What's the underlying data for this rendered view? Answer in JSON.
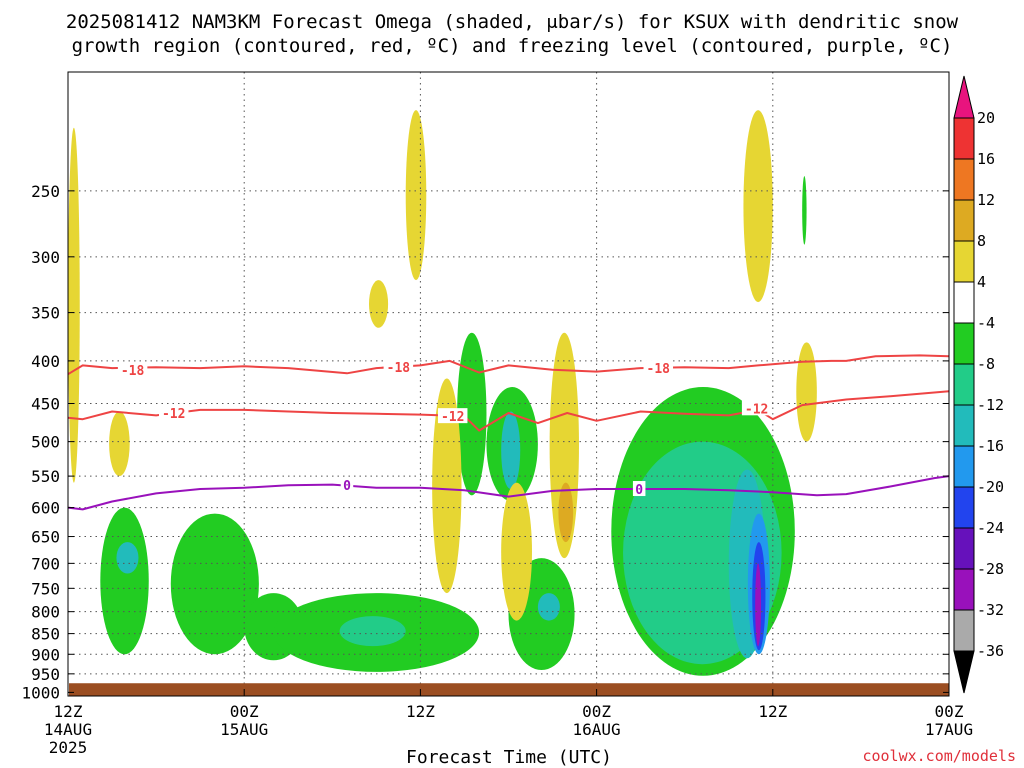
{
  "chart_data": {
    "type": "heatmap",
    "title_line1": "2025081412 NAM3KM Forecast Omega (shaded, μbar/s) for KSUX with dendritic snow",
    "title_line2": "growth region (contoured, red, ºC) and freezing level (contoured, purple, ºC)",
    "xlabel": "Forecast Time (UTC)",
    "credit": "coolwx.com/models",
    "x_ticks": [
      {
        "hour": 0,
        "line1": "12Z",
        "line2": "14AUG",
        "line3": "2025"
      },
      {
        "hour": 12,
        "line1": "00Z",
        "line2": "15AUG",
        "line3": ""
      },
      {
        "hour": 24,
        "line1": "12Z",
        "line2": "",
        "line3": ""
      },
      {
        "hour": 36,
        "line1": "00Z",
        "line2": "16AUG",
        "line3": ""
      },
      {
        "hour": 48,
        "line1": "12Z",
        "line2": "",
        "line3": ""
      },
      {
        "hour": 60,
        "line1": "00Z",
        "line2": "17AUG",
        "line3": ""
      }
    ],
    "x_range_hours": [
      0,
      60
    ],
    "y_ticks": [
      "250",
      "300",
      "350",
      "400",
      "450",
      "500",
      "550",
      "600",
      "650",
      "700",
      "750",
      "800",
      "850",
      "900",
      "950",
      "1000"
    ],
    "y_values": [
      250,
      300,
      350,
      400,
      450,
      500,
      550,
      600,
      650,
      700,
      750,
      800,
      850,
      900,
      950,
      1000
    ],
    "y_range_mb": [
      180,
      1010
    ],
    "y_scale": "log",
    "grid": true,
    "colorbar": {
      "labels": [
        "20",
        "16",
        "12",
        "8",
        "4",
        "-4",
        "-8",
        "-12",
        "-16",
        "-20",
        "-24",
        "-28",
        "-32",
        "-36"
      ],
      "colors": [
        "#e8147e",
        "#ee3333",
        "#ee7722",
        "#ddaa22",
        "#e6d633",
        "#ffffff",
        "#22cc22",
        "#22cc88",
        "#22bbbb",
        "#2299ee",
        "#2244ee",
        "#6611bb",
        "#9911bb",
        "#aaaaaa",
        "#000000"
      ]
    },
    "contours": {
      "dgz_upper": {
        "label": "-18",
        "color": "#ee4444",
        "points": [
          [
            0,
            415
          ],
          [
            1,
            405
          ],
          [
            3,
            408
          ],
          [
            6,
            407
          ],
          [
            9,
            408
          ],
          [
            12,
            406
          ],
          [
            15,
            408
          ],
          [
            19,
            414
          ],
          [
            21,
            408
          ],
          [
            24,
            405
          ],
          [
            26,
            400
          ],
          [
            28,
            413
          ],
          [
            30,
            405
          ],
          [
            33,
            410
          ],
          [
            36,
            412
          ],
          [
            39,
            408
          ],
          [
            42,
            407
          ],
          [
            45,
            408
          ],
          [
            47,
            405
          ],
          [
            50,
            401
          ],
          [
            52,
            400
          ],
          [
            53,
            400
          ],
          [
            55,
            395
          ],
          [
            58,
            394
          ],
          [
            60,
            395
          ]
        ]
      },
      "dgz_lower": {
        "label": "-12",
        "color": "#ee4444",
        "points": [
          [
            0,
            468
          ],
          [
            1,
            470
          ],
          [
            3,
            460
          ],
          [
            6,
            465
          ],
          [
            9,
            458
          ],
          [
            12,
            458
          ],
          [
            15,
            460
          ],
          [
            18,
            462
          ],
          [
            21,
            463
          ],
          [
            24,
            464
          ],
          [
            27,
            466
          ],
          [
            28,
            485
          ],
          [
            30,
            462
          ],
          [
            32,
            475
          ],
          [
            34,
            462
          ],
          [
            36,
            472
          ],
          [
            39,
            460
          ],
          [
            42,
            463
          ],
          [
            45,
            465
          ],
          [
            47,
            458
          ],
          [
            48,
            470
          ],
          [
            50,
            452
          ],
          [
            53,
            445
          ],
          [
            56,
            441
          ],
          [
            60,
            435
          ]
        ]
      },
      "freezing": {
        "label": "0",
        "color": "#9911bb",
        "points": [
          [
            0,
            600
          ],
          [
            1,
            603
          ],
          [
            3,
            590
          ],
          [
            6,
            577
          ],
          [
            9,
            570
          ],
          [
            12,
            568
          ],
          [
            15,
            564
          ],
          [
            18,
            563
          ],
          [
            21,
            568
          ],
          [
            24,
            568
          ],
          [
            27,
            572
          ],
          [
            30,
            582
          ],
          [
            33,
            573
          ],
          [
            36,
            570
          ],
          [
            39,
            570
          ],
          [
            42,
            570
          ],
          [
            45,
            572
          ],
          [
            48,
            575
          ],
          [
            51,
            580
          ],
          [
            53,
            578
          ],
          [
            56,
            566
          ],
          [
            59,
            553
          ],
          [
            60,
            550
          ]
        ]
      }
    },
    "contour_labels": [
      {
        "text": "-18",
        "hour": 4.4,
        "mb": 410,
        "color": "#ee4444"
      },
      {
        "text": "-18",
        "hour": 22.5,
        "mb": 407,
        "color": "#ee4444"
      },
      {
        "text": "-18",
        "hour": 40.2,
        "mb": 408,
        "color": "#ee4444"
      },
      {
        "text": "-12",
        "hour": 7.2,
        "mb": 462,
        "color": "#ee4444"
      },
      {
        "text": "-12",
        "hour": 26.2,
        "mb": 466,
        "color": "#ee4444"
      },
      {
        "text": "-12",
        "hour": 46.9,
        "mb": 456,
        "color": "#ee4444"
      },
      {
        "text": "0",
        "hour": 19.0,
        "mb": 564,
        "color": "#9911bb"
      },
      {
        "text": "0",
        "hour": 38.9,
        "mb": 570,
        "color": "#9911bb"
      }
    ],
    "omega_features": [
      {
        "sign": "up",
        "value": -4,
        "h0": 2.2,
        "h1": 5.5,
        "p0": 600,
        "p1": 900
      },
      {
        "sign": "up",
        "value": -12,
        "h0": 3.3,
        "h1": 4.8,
        "p0": 660,
        "p1": 720
      },
      {
        "sign": "up",
        "value": -4,
        "h0": 7.0,
        "h1": 13.0,
        "p0": 610,
        "p1": 900
      },
      {
        "sign": "up",
        "value": -4,
        "h0": 12.0,
        "h1": 16.0,
        "p0": 760,
        "p1": 915
      },
      {
        "sign": "up",
        "value": -4,
        "h0": 14.0,
        "h1": 28.0,
        "p0": 760,
        "p1": 945
      },
      {
        "sign": "up",
        "value": -8,
        "h0": 18.5,
        "h1": 23.0,
        "p0": 810,
        "p1": 880
      },
      {
        "sign": "up",
        "value": -4,
        "h0": 26.5,
        "h1": 28.5,
        "p0": 370,
        "p1": 580
      },
      {
        "sign": "up",
        "value": -4,
        "h0": 28.5,
        "h1": 32.0,
        "p0": 430,
        "p1": 590
      },
      {
        "sign": "up",
        "value": -12,
        "h0": 29.5,
        "h1": 30.8,
        "p0": 460,
        "p1": 570
      },
      {
        "sign": "up",
        "value": -4,
        "h0": 30.0,
        "h1": 34.5,
        "p0": 690,
        "p1": 940
      },
      {
        "sign": "up",
        "value": -12,
        "h0": 32.0,
        "h1": 33.5,
        "p0": 760,
        "p1": 820
      },
      {
        "sign": "up",
        "value": -4,
        "h0": 37.0,
        "h1": 49.5,
        "p0": 430,
        "p1": 955
      },
      {
        "sign": "up",
        "value": -8,
        "h0": 37.8,
        "h1": 48.6,
        "p0": 500,
        "p1": 925
      },
      {
        "sign": "up",
        "value": -12,
        "h0": 45.0,
        "h1": 47.5,
        "p0": 540,
        "p1": 910
      },
      {
        "sign": "up",
        "value": -16,
        "h0": 46.3,
        "h1": 47.8,
        "p0": 610,
        "p1": 900
      },
      {
        "sign": "up",
        "value": -20,
        "h0": 46.6,
        "h1": 47.5,
        "p0": 660,
        "p1": 890
      },
      {
        "sign": "up",
        "value": -28,
        "h0": 46.8,
        "h1": 47.2,
        "p0": 700,
        "p1": 880
      },
      {
        "sign": "down",
        "value": 4,
        "h0": 0.0,
        "h1": 0.8,
        "p0": 210,
        "p1": 560
      },
      {
        "sign": "down",
        "value": 4,
        "h0": 2.8,
        "h1": 4.2,
        "p0": 460,
        "p1": 550
      },
      {
        "sign": "down",
        "value": 4,
        "h0": 23.0,
        "h1": 24.4,
        "p0": 200,
        "p1": 320
      },
      {
        "sign": "down",
        "value": 4,
        "h0": 20.5,
        "h1": 21.8,
        "p0": 320,
        "p1": 365
      },
      {
        "sign": "down",
        "value": 4,
        "h0": 24.8,
        "h1": 26.8,
        "p0": 420,
        "p1": 760
      },
      {
        "sign": "down",
        "value": 4,
        "h0": 29.5,
        "h1": 31.6,
        "p0": 560,
        "p1": 820
      },
      {
        "sign": "down",
        "value": 4,
        "h0": 32.8,
        "h1": 34.8,
        "p0": 370,
        "p1": 690
      },
      {
        "sign": "down",
        "value": 8,
        "h0": 33.4,
        "h1": 34.4,
        "p0": 560,
        "p1": 660
      },
      {
        "sign": "down",
        "value": 4,
        "h0": 46.0,
        "h1": 48.0,
        "p0": 200,
        "p1": 340
      },
      {
        "sign": "down",
        "value": 4,
        "h0": 49.6,
        "h1": 51.0,
        "p0": 380,
        "p1": 500
      },
      {
        "sign": "up",
        "value": -4,
        "h0": 50.0,
        "h1": 50.3,
        "p0": 240,
        "p1": 290
      }
    ],
    "ground": {
      "color": "#9b4e22",
      "mb_top": 975
    }
  }
}
